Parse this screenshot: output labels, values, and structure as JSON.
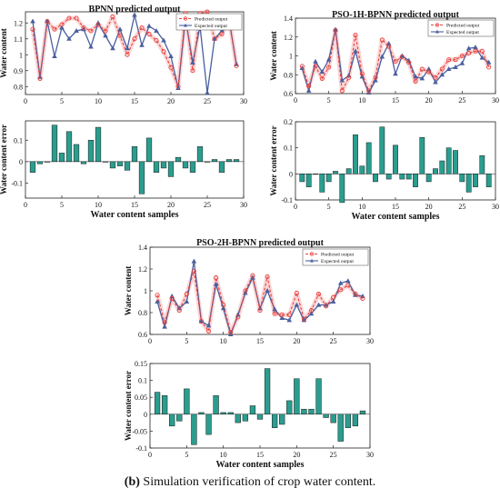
{
  "caption": {
    "label": "(b)",
    "text": " Simulation verification of crop water content."
  },
  "colors": {
    "predicted": "#e8413c",
    "expected": "#4a5f9e",
    "bar": "#2a9d8f",
    "bar_edge": "#1a1a1a",
    "halo": "#f4a6a6"
  },
  "chart_data": [
    {
      "id": "bpnn_output",
      "type": "line",
      "title": "BPNN predicted output",
      "xlabel": "",
      "ylabel": "Water content",
      "xlim": [
        0,
        30
      ],
      "ylim": [
        0.75,
        1.27
      ],
      "xticks": [
        0,
        5,
        10,
        15,
        20,
        25,
        30
      ],
      "yticks": [
        0.8,
        0.9,
        1,
        1.1,
        1.2
      ],
      "ytick_labels": [
        "0.8",
        "0.9",
        "1",
        "1.1",
        "1.2"
      ],
      "legend": "top-right",
      "x": [
        1,
        2,
        3,
        4,
        5,
        6,
        7,
        8,
        9,
        10,
        11,
        12,
        13,
        14,
        15,
        16,
        17,
        18,
        19,
        20,
        21,
        22,
        23,
        24,
        25,
        26,
        27,
        28,
        29
      ],
      "series": [
        {
          "name": "Predicted output",
          "values": [
            1.16,
            0.85,
            1.21,
            1.16,
            1.19,
            1.23,
            1.23,
            1.17,
            1.15,
            1.19,
            1.15,
            1.24,
            1.12,
            1.0,
            1.1,
            1.17,
            1.13,
            1.09,
            1.02,
            0.92,
            0.8,
            1.26,
            0.9,
            1.26,
            1.27,
            1.1,
            1.13,
            1.23,
            0.93
          ]
        },
        {
          "name": "Expected output",
          "values": [
            1.21,
            0.86,
            1.21,
            0.99,
            1.17,
            1.1,
            1.15,
            1.16,
            1.05,
            1.2,
            1.12,
            1.04,
            1.16,
            1.04,
            1.25,
            1.06,
            1.18,
            1.15,
            1.09,
            0.99,
            0.79,
            1.23,
            0.95,
            1.18,
            0.76,
            1.1,
            1.15,
            1.22,
            0.94
          ]
        }
      ]
    },
    {
      "id": "bpnn_error",
      "type": "bar",
      "title": "",
      "xlabel": "Water content samples",
      "ylabel": "Water content error",
      "xlim": [
        0,
        30
      ],
      "ylim": [
        -0.17,
        0.19
      ],
      "xticks": [
        0,
        5,
        10,
        15,
        20,
        25,
        30
      ],
      "yticks": [
        -0.1,
        0,
        0.1
      ],
      "ytick_labels": [
        "-0.1",
        "0",
        "0.1"
      ],
      "x": [
        1,
        2,
        3,
        4,
        5,
        6,
        7,
        8,
        9,
        10,
        11,
        12,
        13,
        14,
        15,
        16,
        17,
        18,
        19,
        20,
        21,
        22,
        23,
        24,
        25,
        26,
        27,
        28,
        29
      ],
      "values": [
        -0.05,
        -0.01,
        0.0,
        0.17,
        0.04,
        0.14,
        0.08,
        -0.01,
        0.1,
        0.16,
        0.0,
        -0.03,
        -0.02,
        -0.04,
        0.07,
        -0.15,
        0.11,
        -0.05,
        -0.03,
        -0.07,
        0.02,
        -0.03,
        -0.05,
        0.07,
        0.0,
        0.01,
        -0.05,
        0.01,
        0.01
      ]
    },
    {
      "id": "pso1h_output",
      "type": "line",
      "title": "PSO-1H-BPNN predicted output",
      "xlabel": "",
      "ylabel": "Water content",
      "xlim": [
        0,
        30
      ],
      "ylim": [
        0.6,
        1.4
      ],
      "xticks": [
        0,
        5,
        10,
        15,
        20,
        25,
        30
      ],
      "yticks": [
        0.6,
        0.8,
        1,
        1.2,
        1.4
      ],
      "ytick_labels": [
        "0.6",
        "0.8",
        "1",
        "1.2",
        "1.4"
      ],
      "legend": "top-right",
      "x": [
        1,
        2,
        3,
        4,
        5,
        6,
        7,
        8,
        9,
        10,
        11,
        12,
        13,
        14,
        15,
        16,
        17,
        18,
        19,
        20,
        21,
        22,
        23,
        24,
        25,
        26,
        27,
        28,
        29
      ],
      "series": [
        {
          "name": "Predicted output",
          "values": [
            0.89,
            0.68,
            0.89,
            0.76,
            0.88,
            1.27,
            0.63,
            0.77,
            1.22,
            0.81,
            0.63,
            0.77,
            1.17,
            1.1,
            0.94,
            0.99,
            0.93,
            0.73,
            0.86,
            0.83,
            0.77,
            0.86,
            0.96,
            0.96,
            1.0,
            1.03,
            1.05,
            1.05,
            0.88
          ]
        },
        {
          "name": "Expected output",
          "values": [
            0.87,
            0.63,
            0.94,
            0.83,
            0.96,
            1.28,
            0.74,
            0.79,
            1.05,
            0.78,
            0.61,
            0.74,
            0.99,
            1.13,
            0.81,
            1.0,
            0.95,
            0.78,
            0.76,
            0.86,
            0.72,
            0.8,
            0.86,
            0.88,
            0.92,
            1.08,
            1.09,
            0.98,
            0.93
          ]
        }
      ]
    },
    {
      "id": "pso1h_error",
      "type": "bar",
      "title": "",
      "xlabel": "Water content samples",
      "ylabel": "Water content error",
      "xlim": [
        0,
        30
      ],
      "ylim": [
        -0.1,
        0.2
      ],
      "xticks": [
        0,
        5,
        10,
        15,
        20,
        25,
        30
      ],
      "yticks": [
        -0.1,
        0,
        0.1,
        0.2
      ],
      "ytick_labels": [
        "-0.1",
        "0",
        "0.1",
        "0.2"
      ],
      "x": [
        1,
        2,
        3,
        4,
        5,
        6,
        7,
        8,
        9,
        10,
        11,
        12,
        13,
        14,
        15,
        16,
        17,
        18,
        19,
        20,
        21,
        22,
        23,
        24,
        25,
        26,
        27,
        28,
        29
      ],
      "values": [
        -0.03,
        -0.05,
        0.0,
        -0.07,
        -0.03,
        0.01,
        -0.11,
        0.02,
        0.15,
        0.03,
        0.12,
        -0.03,
        0.18,
        -0.02,
        0.11,
        -0.02,
        -0.02,
        -0.05,
        0.14,
        -0.03,
        0.02,
        0.05,
        0.1,
        0.09,
        -0.03,
        -0.07,
        -0.05,
        0.07,
        -0.05
      ]
    },
    {
      "id": "pso2h_output",
      "type": "line",
      "title": "PSO-2H-BPNN predicted output",
      "xlabel": "",
      "ylabel": "Water content",
      "xlim": [
        0,
        30
      ],
      "ylim": [
        0.6,
        1.4
      ],
      "xticks": [
        0,
        5,
        10,
        15,
        20,
        25,
        30
      ],
      "yticks": [
        0.6,
        0.8,
        1,
        1.2,
        1.4
      ],
      "ytick_labels": [
        "0.6",
        "0.8",
        "1",
        "1.2",
        "1.4"
      ],
      "legend": "top-right",
      "x": [
        1,
        2,
        3,
        4,
        5,
        6,
        7,
        8,
        9,
        10,
        11,
        12,
        13,
        14,
        15,
        16,
        17,
        18,
        19,
        20,
        21,
        22,
        23,
        24,
        25,
        26,
        27,
        28,
        29
      ],
      "series": [
        {
          "name": "Predicted output",
          "values": [
            0.96,
            0.71,
            0.93,
            0.82,
            0.97,
            1.18,
            0.72,
            0.63,
            1.12,
            0.87,
            0.62,
            0.76,
            1.0,
            1.14,
            0.82,
            1.13,
            0.79,
            0.78,
            0.78,
            0.98,
            0.74,
            0.82,
            0.97,
            0.86,
            0.94,
            1.01,
            1.05,
            0.97,
            0.93
          ]
        },
        {
          "name": "Expected output",
          "values": [
            0.9,
            0.67,
            0.95,
            0.84,
            0.9,
            1.27,
            0.72,
            0.68,
            1.06,
            0.84,
            0.6,
            0.78,
            0.98,
            1.12,
            0.84,
            1.0,
            0.83,
            0.75,
            0.73,
            0.87,
            0.73,
            0.79,
            0.87,
            0.87,
            0.9,
            1.07,
            1.09,
            0.96,
            0.95
          ]
        }
      ]
    },
    {
      "id": "pso2h_error",
      "type": "bar",
      "title": "",
      "xlabel": "Water content samples",
      "ylabel": "Water content error",
      "xlim": [
        0,
        30
      ],
      "ylim": [
        -0.1,
        0.15
      ],
      "xticks": [
        0,
        5,
        10,
        15,
        20,
        25,
        30
      ],
      "yticks": [
        -0.1,
        -0.05,
        0,
        0.05,
        0.1,
        0.15
      ],
      "ytick_labels": [
        "-0.1",
        "-0.05",
        "0",
        "0.05",
        "0.1",
        "0.15"
      ],
      "x": [
        1,
        2,
        3,
        4,
        5,
        6,
        7,
        8,
        9,
        10,
        11,
        12,
        13,
        14,
        15,
        16,
        17,
        18,
        19,
        20,
        21,
        22,
        23,
        24,
        25,
        26,
        27,
        28,
        29
      ],
      "values": [
        0.065,
        0.055,
        -0.035,
        -0.02,
        0.075,
        -0.09,
        0.005,
        -0.06,
        0.055,
        0.005,
        0.005,
        -0.025,
        -0.02,
        0.025,
        -0.015,
        0.135,
        -0.04,
        -0.03,
        0.04,
        0.105,
        0.015,
        0.015,
        0.105,
        -0.01,
        -0.025,
        -0.08,
        -0.04,
        -0.035,
        0.01
      ]
    }
  ]
}
